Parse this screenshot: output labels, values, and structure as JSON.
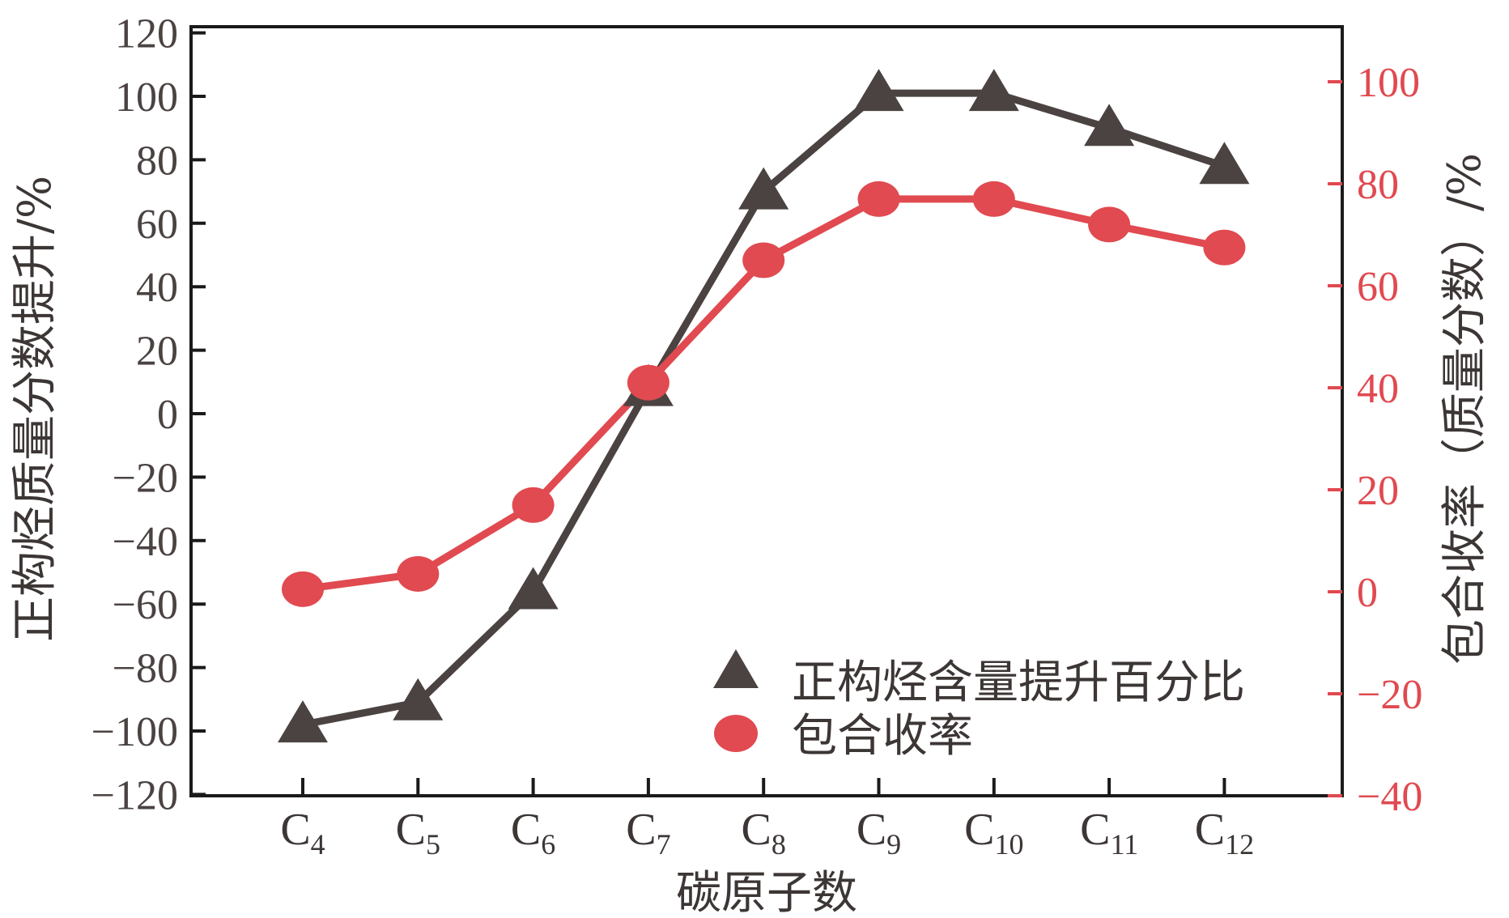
{
  "chart_data": {
    "type": "line",
    "categories": [
      {
        "base": "C",
        "sub": "4"
      },
      {
        "base": "C",
        "sub": "5"
      },
      {
        "base": "C",
        "sub": "6"
      },
      {
        "base": "C",
        "sub": "7"
      },
      {
        "base": "C",
        "sub": "8"
      },
      {
        "base": "C",
        "sub": "9"
      },
      {
        "base": "C",
        "sub": "10"
      },
      {
        "base": "C",
        "sub": "11"
      },
      {
        "base": "C",
        "sub": "12"
      }
    ],
    "xlabel": "碳原子数",
    "ylabel_left": "正构烃质量分数提升/%",
    "ylabel_right": "包合收率（质量分数）/%",
    "ylim_left": [
      -120,
      120
    ],
    "ylim_right": [
      -40,
      110
    ],
    "yticks_left": [
      "120",
      "100",
      "80",
      "60",
      "40",
      "20",
      "0",
      "−20",
      "−40",
      "−60",
      "−80",
      "−100",
      "−120"
    ],
    "yticks_left_values": [
      120,
      100,
      80,
      60,
      40,
      20,
      0,
      -20,
      -40,
      -60,
      -80,
      -100,
      -120
    ],
    "yticks_right": [
      "100",
      "80",
      "60",
      "40",
      "20",
      "0",
      "−20",
      "−40"
    ],
    "yticks_right_values": [
      100,
      80,
      60,
      40,
      20,
      0,
      -20,
      -40
    ],
    "grid": false,
    "legend_position": "bottom-right",
    "series": [
      {
        "name": "正构烃含量提升百分比",
        "axis": "left",
        "marker": "triangle",
        "color": "#4a4342",
        "values": [
          -98,
          -91,
          -56,
          8,
          70,
          101,
          101,
          90,
          78
        ]
      },
      {
        "name": "包合收率",
        "axis": "right",
        "marker": "circle",
        "color": "#e04a50",
        "values": [
          0.5,
          3.5,
          17,
          41,
          65,
          77,
          77,
          72,
          67.5
        ]
      }
    ]
  }
}
